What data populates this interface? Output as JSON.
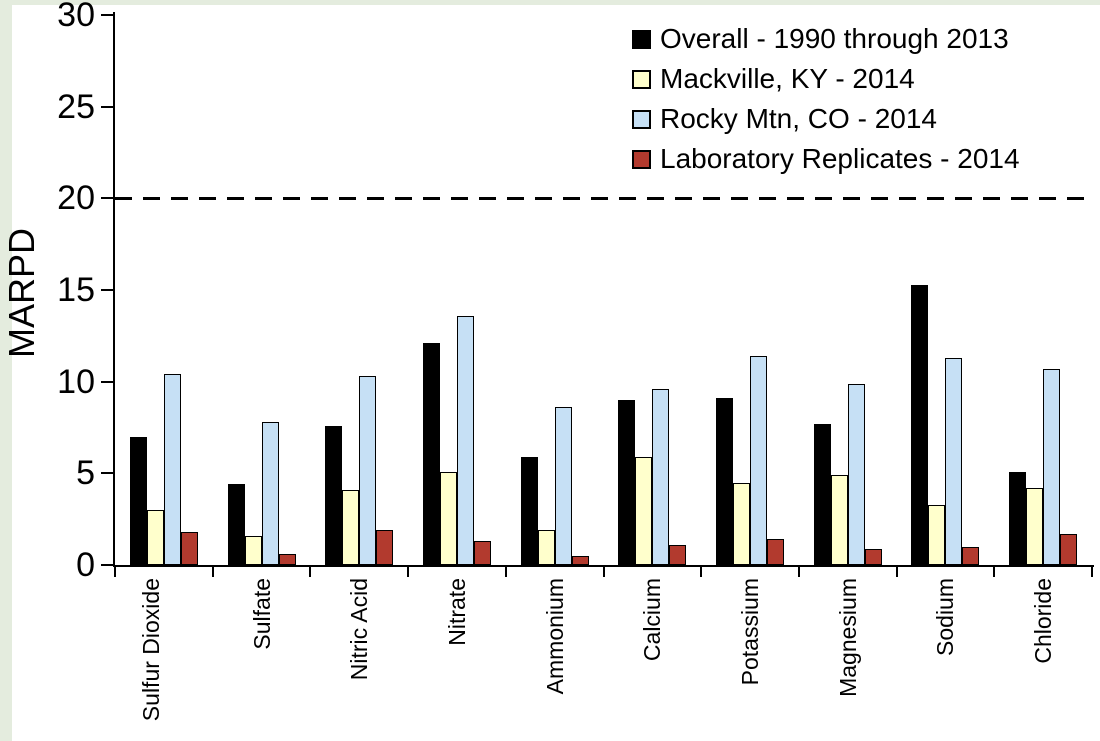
{
  "page": {
    "background": "#FFFFFF",
    "frame_color": "#E4ECDE"
  },
  "chart_data": {
    "type": "bar",
    "title": "",
    "xlabel": "",
    "ylabel": "MARPD",
    "ylim": [
      0,
      30
    ],
    "yticks": [
      0,
      5,
      10,
      15,
      20,
      25,
      30
    ],
    "grid": false,
    "legend_position": "top-right",
    "reference_line": {
      "y": 20,
      "style": "dashed",
      "color": "#000000"
    },
    "categories": [
      "Sulfur Dioxide",
      "Sulfate",
      "Nitric Acid",
      "Nitrate",
      "Ammonium",
      "Calcium",
      "Potassium",
      "Magnesium",
      "Sodium",
      "Chloride"
    ],
    "series": [
      {
        "name": "Overall - 1990 through 2013",
        "color": "#000000",
        "values": [
          7.0,
          4.4,
          7.6,
          12.1,
          5.9,
          9.0,
          9.1,
          7.7,
          15.3,
          5.1
        ]
      },
      {
        "name": "Mackville, KY - 2014",
        "color": "#FFFFCC",
        "values": [
          3.0,
          1.6,
          4.1,
          5.1,
          1.9,
          5.9,
          4.5,
          4.9,
          3.3,
          4.2
        ]
      },
      {
        "name": "Rocky Mtn, CO - 2014",
        "color": "#C6E0F5",
        "values": [
          10.4,
          7.8,
          10.3,
          13.6,
          8.6,
          9.6,
          11.4,
          9.9,
          11.3,
          10.7
        ]
      },
      {
        "name": "Laboratory Replicates - 2014",
        "color": "#B23A2E",
        "values": [
          1.8,
          0.6,
          1.9,
          1.3,
          0.5,
          1.1,
          1.4,
          0.9,
          1.0,
          1.7
        ]
      }
    ]
  }
}
